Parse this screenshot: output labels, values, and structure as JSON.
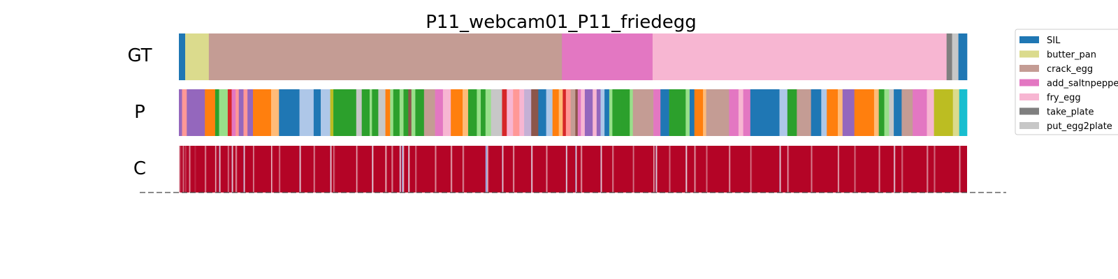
{
  "chart_data": {
    "type": "segmentation-timeline",
    "title": "P11_webcam01_P11_friedegg",
    "rows": [
      {
        "label": "GT"
      },
      {
        "label": "P"
      },
      {
        "label": "C"
      }
    ],
    "legend_entries": [
      "SIL",
      "butter_pan",
      "crack_egg",
      "add_saltnpepper",
      "fry_egg",
      "take_plate",
      "put_egg2plate"
    ],
    "legend_colors": [
      "#1f77b4",
      "#dbdb8d",
      "#c49c94",
      "#e377c2",
      "#f7b6d2",
      "#7f7f7f",
      "#c7c7c7"
    ],
    "x_range": [
      0,
      1000
    ],
    "gt_segments": [
      {
        "start": 0,
        "end": 8,
        "label": "SIL",
        "color": "#1f77b4"
      },
      {
        "start": 8,
        "end": 38,
        "label": "butter_pan",
        "color": "#dbdb8d"
      },
      {
        "start": 38,
        "end": 486,
        "label": "crack_egg",
        "color": "#c49c94"
      },
      {
        "start": 486,
        "end": 601,
        "label": "add_saltnpepper",
        "color": "#e377c2"
      },
      {
        "start": 601,
        "end": 974,
        "label": "fry_egg",
        "color": "#f7b6d2"
      },
      {
        "start": 974,
        "end": 981,
        "label": "take_plate",
        "color": "#7f7f7f"
      },
      {
        "start": 981,
        "end": 989,
        "label": "put_egg2plate",
        "color": "#c7c7c7"
      },
      {
        "start": 989,
        "end": 1000,
        "label": "SIL",
        "color": "#1f77b4"
      }
    ],
    "p_segments": [
      {
        "start": 0,
        "end": 4,
        "color": "#9467bd"
      },
      {
        "start": 4,
        "end": 10,
        "color": "#ff9896"
      },
      {
        "start": 10,
        "end": 22,
        "color": "#9467bd"
      },
      {
        "start": 22,
        "end": 33,
        "color": "#9467bd"
      },
      {
        "start": 33,
        "end": 46,
        "color": "#ff7f0e"
      },
      {
        "start": 46,
        "end": 51,
        "color": "#2ca02c"
      },
      {
        "start": 51,
        "end": 62,
        "color": "#98df8a"
      },
      {
        "start": 62,
        "end": 67,
        "color": "#d62728"
      },
      {
        "start": 67,
        "end": 72,
        "color": "#e377c2"
      },
      {
        "start": 72,
        "end": 76,
        "color": "#ff9896"
      },
      {
        "start": 76,
        "end": 82,
        "color": "#9467bd"
      },
      {
        "start": 82,
        "end": 87,
        "color": "#ff9896"
      },
      {
        "start": 87,
        "end": 94,
        "color": "#9467bd"
      },
      {
        "start": 94,
        "end": 117,
        "color": "#ff7f0e"
      },
      {
        "start": 117,
        "end": 127,
        "color": "#ffbb78"
      },
      {
        "start": 127,
        "end": 153,
        "color": "#1f77b4"
      },
      {
        "start": 153,
        "end": 171,
        "color": "#aec7e8"
      },
      {
        "start": 171,
        "end": 180,
        "color": "#1f77b4"
      },
      {
        "start": 180,
        "end": 192,
        "color": "#aec7e8"
      },
      {
        "start": 192,
        "end": 196,
        "color": "#bcbd22"
      },
      {
        "start": 196,
        "end": 225,
        "color": "#2ca02c"
      },
      {
        "start": 225,
        "end": 232,
        "color": "#c7c7c7"
      },
      {
        "start": 232,
        "end": 242,
        "color": "#2ca02c"
      },
      {
        "start": 242,
        "end": 245,
        "color": "#98df8a"
      },
      {
        "start": 245,
        "end": 253,
        "color": "#2ca02c"
      },
      {
        "start": 253,
        "end": 262,
        "color": "#c7c7c7"
      },
      {
        "start": 262,
        "end": 268,
        "color": "#ff7f0e"
      },
      {
        "start": 268,
        "end": 272,
        "color": "#98df8a"
      },
      {
        "start": 272,
        "end": 280,
        "color": "#2ca02c"
      },
      {
        "start": 280,
        "end": 285,
        "color": "#98df8a"
      },
      {
        "start": 285,
        "end": 291,
        "color": "#2ca02c"
      },
      {
        "start": 291,
        "end": 295,
        "color": "#8c564b"
      },
      {
        "start": 295,
        "end": 300,
        "color": "#98df8a"
      },
      {
        "start": 300,
        "end": 311,
        "color": "#2ca02c"
      },
      {
        "start": 311,
        "end": 325,
        "color": "#c49c94"
      },
      {
        "start": 325,
        "end": 335,
        "color": "#e377c2"
      },
      {
        "start": 335,
        "end": 345,
        "color": "#f7b6d2"
      },
      {
        "start": 345,
        "end": 360,
        "color": "#ff7f0e"
      },
      {
        "start": 360,
        "end": 367,
        "color": "#ffbb78"
      },
      {
        "start": 367,
        "end": 378,
        "color": "#2ca02c"
      },
      {
        "start": 378,
        "end": 383,
        "color": "#98df8a"
      },
      {
        "start": 383,
        "end": 389,
        "color": "#2ca02c"
      },
      {
        "start": 389,
        "end": 396,
        "color": "#98df8a"
      },
      {
        "start": 396,
        "end": 410,
        "color": "#c7c7c7"
      },
      {
        "start": 410,
        "end": 416,
        "color": "#d62728"
      },
      {
        "start": 416,
        "end": 424,
        "color": "#f7b6d2"
      },
      {
        "start": 424,
        "end": 432,
        "color": "#ff9896"
      },
      {
        "start": 432,
        "end": 438,
        "color": "#f7b6d2"
      },
      {
        "start": 438,
        "end": 447,
        "color": "#c5b0d5"
      },
      {
        "start": 447,
        "end": 456,
        "color": "#8c564b"
      },
      {
        "start": 456,
        "end": 466,
        "color": "#1f77b4"
      },
      {
        "start": 466,
        "end": 474,
        "color": "#aec7e8"
      },
      {
        "start": 474,
        "end": 482,
        "color": "#ff7f0e"
      },
      {
        "start": 482,
        "end": 487,
        "color": "#ffbb78"
      },
      {
        "start": 487,
        "end": 491,
        "color": "#d62728"
      },
      {
        "start": 491,
        "end": 497,
        "color": "#ff9896"
      },
      {
        "start": 497,
        "end": 503,
        "color": "#c49c94"
      },
      {
        "start": 503,
        "end": 506,
        "color": "#8c564b"
      },
      {
        "start": 506,
        "end": 510,
        "color": "#e377c2"
      },
      {
        "start": 510,
        "end": 515,
        "color": "#f7b6d2"
      },
      {
        "start": 515,
        "end": 525,
        "color": "#9467bd"
      },
      {
        "start": 525,
        "end": 530,
        "color": "#f7b6d2"
      },
      {
        "start": 530,
        "end": 535,
        "color": "#9467bd"
      },
      {
        "start": 535,
        "end": 540,
        "color": "#aec7e8"
      },
      {
        "start": 540,
        "end": 546,
        "color": "#1f77b4"
      },
      {
        "start": 546,
        "end": 550,
        "color": "#98df8a"
      },
      {
        "start": 550,
        "end": 560,
        "color": "#2ca02c"
      },
      {
        "start": 560,
        "end": 572,
        "color": "#2ca02c"
      },
      {
        "start": 572,
        "end": 576,
        "color": "#98df8a"
      },
      {
        "start": 576,
        "end": 602,
        "color": "#c49c94"
      },
      {
        "start": 602,
        "end": 611,
        "color": "#e377c2"
      },
      {
        "start": 611,
        "end": 622,
        "color": "#1f77b4"
      },
      {
        "start": 622,
        "end": 643,
        "color": "#2ca02c"
      },
      {
        "start": 643,
        "end": 648,
        "color": "#98df8a"
      },
      {
        "start": 648,
        "end": 654,
        "color": "#1f77b4"
      },
      {
        "start": 654,
        "end": 665,
        "color": "#ff7f0e"
      },
      {
        "start": 665,
        "end": 669,
        "color": "#ffbb78"
      },
      {
        "start": 669,
        "end": 698,
        "color": "#c49c94"
      },
      {
        "start": 698,
        "end": 710,
        "color": "#e377c2"
      },
      {
        "start": 710,
        "end": 716,
        "color": "#f7b6d2"
      },
      {
        "start": 716,
        "end": 725,
        "color": "#e377c2"
      },
      {
        "start": 725,
        "end": 762,
        "color": "#1f77b4"
      },
      {
        "start": 762,
        "end": 772,
        "color": "#aec7e8"
      },
      {
        "start": 772,
        "end": 784,
        "color": "#2ca02c"
      },
      {
        "start": 784,
        "end": 802,
        "color": "#c49c94"
      },
      {
        "start": 802,
        "end": 815,
        "color": "#1f77b4"
      },
      {
        "start": 815,
        "end": 822,
        "color": "#aec7e8"
      },
      {
        "start": 822,
        "end": 836,
        "color": "#ff7f0e"
      },
      {
        "start": 836,
        "end": 842,
        "color": "#ffbb78"
      },
      {
        "start": 842,
        "end": 857,
        "color": "#9467bd"
      },
      {
        "start": 857,
        "end": 882,
        "color": "#ff7f0e"
      },
      {
        "start": 882,
        "end": 888,
        "color": "#ffbb78"
      },
      {
        "start": 888,
        "end": 895,
        "color": "#2ca02c"
      },
      {
        "start": 895,
        "end": 901,
        "color": "#98df8a"
      },
      {
        "start": 901,
        "end": 907,
        "color": "#c7c7c7"
      },
      {
        "start": 907,
        "end": 917,
        "color": "#1f77b4"
      },
      {
        "start": 917,
        "end": 931,
        "color": "#c49c94"
      },
      {
        "start": 931,
        "end": 949,
        "color": "#e377c2"
      },
      {
        "start": 949,
        "end": 958,
        "color": "#f7b6d2"
      },
      {
        "start": 958,
        "end": 982,
        "color": "#bcbd22"
      },
      {
        "start": 982,
        "end": 990,
        "color": "#dbdb8d"
      },
      {
        "start": 990,
        "end": 1000,
        "color": "#17becf"
      }
    ],
    "confidence_colormap": {
      "low": "#3b4cc0",
      "mid": "#f7f7f7",
      "high": "#b40426"
    },
    "confidence_levels": [
      {
        "pos": 0,
        "value": 0.55
      },
      {
        "pos": 2,
        "value": 0.95
      },
      {
        "pos": 5,
        "value": 0.7
      },
      {
        "pos": 8,
        "value": 0.85
      },
      {
        "pos": 13,
        "value": 0.6
      },
      {
        "pos": 20,
        "value": 0.9
      },
      {
        "pos": 33,
        "value": 0.65
      },
      {
        "pos": 46,
        "value": 0.6
      },
      {
        "pos": 51,
        "value": 0.25
      },
      {
        "pos": 62,
        "value": 0.7
      },
      {
        "pos": 67,
        "value": 0.3
      },
      {
        "pos": 72,
        "value": 0.6
      },
      {
        "pos": 82,
        "value": 0.25
      },
      {
        "pos": 94,
        "value": 0.65
      },
      {
        "pos": 117,
        "value": 0.55
      },
      {
        "pos": 127,
        "value": 0.7
      },
      {
        "pos": 153,
        "value": 0.3
      },
      {
        "pos": 171,
        "value": 0.65
      },
      {
        "pos": 192,
        "value": 0.35
      },
      {
        "pos": 196,
        "value": 0.7
      },
      {
        "pos": 225,
        "value": 0.6
      },
      {
        "pos": 245,
        "value": 0.35
      },
      {
        "pos": 262,
        "value": 0.5
      },
      {
        "pos": 270,
        "value": 0.6
      },
      {
        "pos": 280,
        "value": 0.3
      },
      {
        "pos": 283,
        "value": 0.05
      },
      {
        "pos": 284,
        "value": 0.5
      },
      {
        "pos": 291,
        "value": 0.35
      },
      {
        "pos": 300,
        "value": 0.7
      },
      {
        "pos": 325,
        "value": 0.6
      },
      {
        "pos": 345,
        "value": 0.55
      },
      {
        "pos": 360,
        "value": 0.6
      },
      {
        "pos": 389,
        "value": 0.2
      },
      {
        "pos": 390,
        "value": 0.1
      },
      {
        "pos": 391,
        "value": 0.55
      },
      {
        "pos": 410,
        "value": 0.3
      },
      {
        "pos": 424,
        "value": 0.6
      },
      {
        "pos": 447,
        "value": 0.35
      },
      {
        "pos": 466,
        "value": 0.6
      },
      {
        "pos": 491,
        "value": 0.3
      },
      {
        "pos": 503,
        "value": 0.2
      },
      {
        "pos": 510,
        "value": 0.6
      },
      {
        "pos": 535,
        "value": 0.3
      },
      {
        "pos": 550,
        "value": 0.65
      },
      {
        "pos": 576,
        "value": 0.7
      },
      {
        "pos": 602,
        "value": 0.6
      },
      {
        "pos": 605,
        "value": 0.25
      },
      {
        "pos": 622,
        "value": 0.7
      },
      {
        "pos": 643,
        "value": 0.35
      },
      {
        "pos": 654,
        "value": 0.6
      },
      {
        "pos": 669,
        "value": 0.7
      },
      {
        "pos": 698,
        "value": 0.6
      },
      {
        "pos": 725,
        "value": 0.7
      },
      {
        "pos": 762,
        "value": 0.3
      },
      {
        "pos": 772,
        "value": 0.6
      },
      {
        "pos": 802,
        "value": 0.65
      },
      {
        "pos": 836,
        "value": 0.55
      },
      {
        "pos": 857,
        "value": 0.7
      },
      {
        "pos": 888,
        "value": 0.6
      },
      {
        "pos": 907,
        "value": 0.35
      },
      {
        "pos": 917,
        "value": 0.7
      },
      {
        "pos": 949,
        "value": 0.6
      },
      {
        "pos": 958,
        "value": 0.7
      },
      {
        "pos": 990,
        "value": 0.6
      }
    ],
    "legend_placement": "upper-right-outside",
    "grid": false
  }
}
